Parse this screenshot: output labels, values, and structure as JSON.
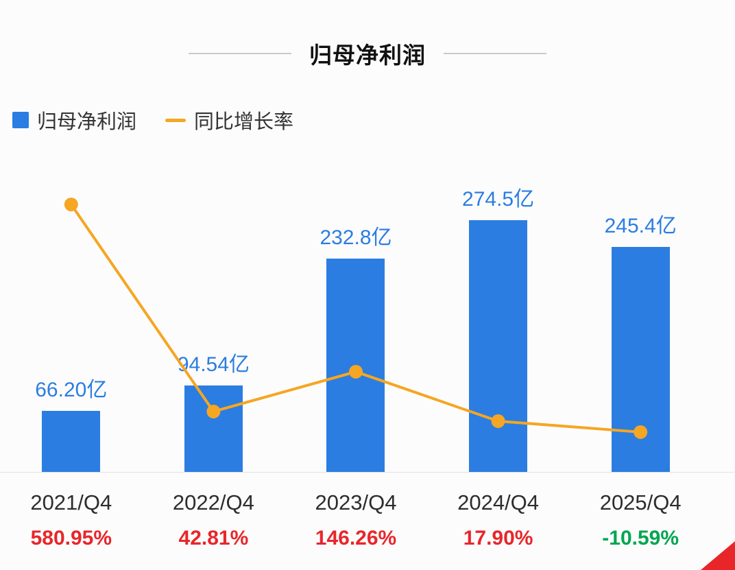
{
  "title": "归母净利润",
  "legend": {
    "bar_label": "归母净利润",
    "line_label": "同比增长率"
  },
  "colors": {
    "bar": "#2b7de1",
    "line": "#f5a623",
    "value_label": "#2b7de1",
    "up": "#e8262a",
    "down": "#00a650",
    "axis_label": "#2d2d2d",
    "corner": "#e8262a"
  },
  "chart_data": {
    "type": "bar",
    "title": "归母净利润",
    "categories": [
      "2021/Q4",
      "2022/Q4",
      "2023/Q4",
      "2024/Q4",
      "2025/Q4"
    ],
    "series": [
      {
        "name": "归母净利润",
        "type": "bar",
        "unit": "亿",
        "values": [
          66.2,
          94.54,
          232.8,
          274.5,
          245.4
        ],
        "labels": [
          "66.20亿",
          "94.54亿",
          "232.8亿",
          "274.5亿",
          "245.4亿"
        ]
      },
      {
        "name": "同比增长率",
        "type": "line",
        "unit": "%",
        "values": [
          580.95,
          42.81,
          146.26,
          17.9,
          -10.59
        ],
        "labels": [
          "580.95%",
          "42.81%",
          "146.26%",
          "17.90%",
          "-10.59%"
        ],
        "directions": [
          "up",
          "up",
          "up",
          "up",
          "down"
        ]
      }
    ],
    "legend_position": "top-left",
    "grid": false
  }
}
